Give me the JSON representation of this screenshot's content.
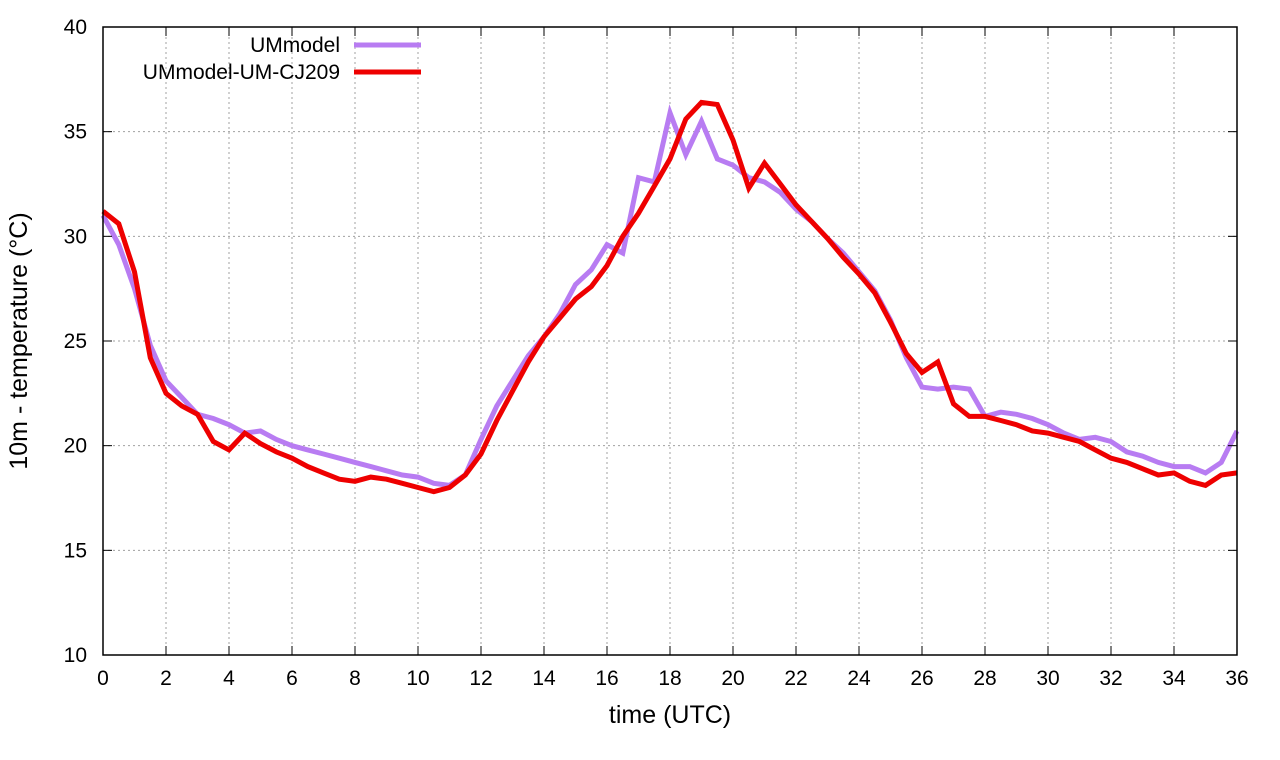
{
  "chart_data": {
    "type": "line",
    "xlabel": "time (UTC)",
    "ylabel": "10m - temperature (°C)",
    "xlim": [
      0,
      36
    ],
    "ylim": [
      10,
      40
    ],
    "x_ticks": [
      "0",
      "2",
      "4",
      "6",
      "8",
      "10",
      "12",
      "14",
      "16",
      "18",
      "20",
      "22",
      "24",
      "26",
      "28",
      "30",
      "32",
      "34",
      "36"
    ],
    "y_ticks": [
      "10",
      "15",
      "20",
      "25",
      "30",
      "35",
      "40"
    ],
    "grid": true,
    "legend_position": "top-left",
    "series": [
      {
        "name": "UMmodel",
        "color": "#b87cf2",
        "x": [
          0,
          0.5,
          1,
          1.5,
          2,
          2.5,
          3,
          3.5,
          4,
          4.5,
          5,
          5.5,
          6,
          6.5,
          7,
          7.5,
          8,
          8.5,
          9,
          9.5,
          10,
          10.5,
          11,
          11.5,
          12,
          12.5,
          13,
          13.5,
          14,
          14.5,
          15,
          15.5,
          16,
          16.5,
          17,
          17.5,
          18,
          18.5,
          19,
          19.5,
          20,
          20.5,
          21,
          21.5,
          22,
          22.5,
          23,
          23.5,
          24,
          24.5,
          25,
          25.5,
          26,
          26.5,
          27,
          27.5,
          28,
          28.5,
          29,
          29.5,
          30,
          30.5,
          31,
          31.5,
          32,
          32.5,
          33,
          33.5,
          34,
          34.5,
          35,
          35.5,
          36
        ],
        "y": [
          31.0,
          29.6,
          27.5,
          24.8,
          23.1,
          22.3,
          21.5,
          21.3,
          21.0,
          20.6,
          20.7,
          20.3,
          20.0,
          19.8,
          19.6,
          19.4,
          19.2,
          19.0,
          18.8,
          18.6,
          18.5,
          18.2,
          18.1,
          18.6,
          20.3,
          21.9,
          23.1,
          24.3,
          25.2,
          26.3,
          27.7,
          28.4,
          29.6,
          29.2,
          32.8,
          32.6,
          35.9,
          33.9,
          35.5,
          33.7,
          33.4,
          32.8,
          32.6,
          32.1,
          31.3,
          30.7,
          29.9,
          29.2,
          28.3,
          27.4,
          26.0,
          24.2,
          22.8,
          22.7,
          22.8,
          22.7,
          21.4,
          21.6,
          21.5,
          21.3,
          21.0,
          20.6,
          20.3,
          20.4,
          20.2,
          19.7,
          19.5,
          19.2,
          19.0,
          19.0,
          18.7,
          19.2,
          20.7
        ]
      },
      {
        "name": "UMmodel-UM-CJ209",
        "color": "#ee0000",
        "x": [
          0,
          0.5,
          1,
          1.5,
          2,
          2.5,
          3,
          3.5,
          4,
          4.5,
          5,
          5.5,
          6,
          6.5,
          7,
          7.5,
          8,
          8.5,
          9,
          9.5,
          10,
          10.5,
          11,
          11.5,
          12,
          12.5,
          13,
          13.5,
          14,
          14.5,
          15,
          15.5,
          16,
          16.5,
          17,
          17.5,
          18,
          18.5,
          19,
          19.5,
          20,
          20.5,
          21,
          21.5,
          22,
          22.5,
          23,
          23.5,
          24,
          24.5,
          25,
          25.5,
          26,
          26.5,
          27,
          27.5,
          28,
          28.5,
          29,
          29.5,
          30,
          30.5,
          31,
          31.5,
          32,
          32.5,
          33,
          33.5,
          34,
          34.5,
          35,
          35.5,
          36
        ],
        "y": [
          31.2,
          30.6,
          28.3,
          24.2,
          22.5,
          21.9,
          21.5,
          20.2,
          19.8,
          20.6,
          20.1,
          19.7,
          19.4,
          19.0,
          18.7,
          18.4,
          18.3,
          18.5,
          18.4,
          18.2,
          18.0,
          17.8,
          18.0,
          18.6,
          19.6,
          21.2,
          22.6,
          24.0,
          25.2,
          26.1,
          27.0,
          27.6,
          28.6,
          30.0,
          31.1,
          32.4,
          33.7,
          35.6,
          36.4,
          36.3,
          34.6,
          32.3,
          33.5,
          32.5,
          31.5,
          30.7,
          29.9,
          29.0,
          28.2,
          27.3,
          25.9,
          24.4,
          23.5,
          24.0,
          22.0,
          21.4,
          21.4,
          21.2,
          21.0,
          20.7,
          20.6,
          20.4,
          20.2,
          19.8,
          19.4,
          19.2,
          18.9,
          18.6,
          18.7,
          18.3,
          18.1,
          18.6,
          18.7
        ]
      }
    ]
  }
}
